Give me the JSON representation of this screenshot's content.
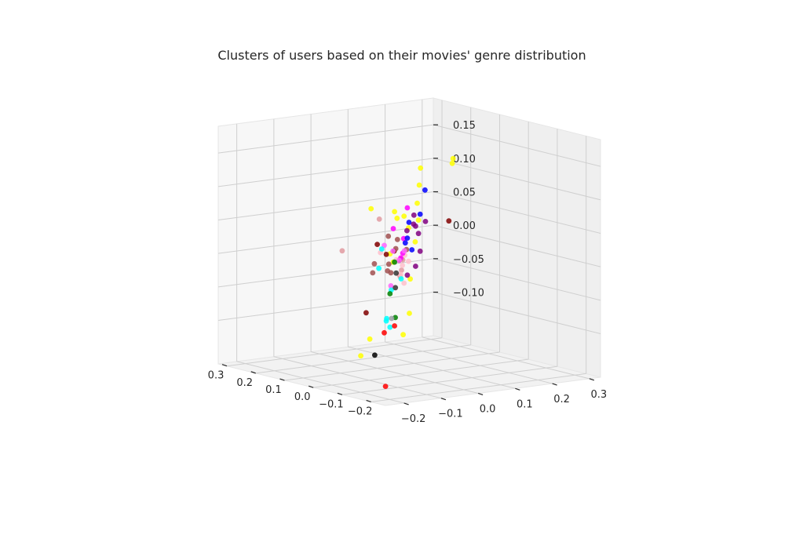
{
  "chart_data": {
    "type": "scatter",
    "dimensions": 3,
    "title": "Clusters of users based on their movies' genre distribution",
    "xlabel": "",
    "ylabel": "",
    "zlabel": "",
    "grid": true,
    "legend": "none",
    "axes": {
      "x": {
        "ticks": [
          -0.2,
          -0.1,
          0.0,
          0.1,
          0.2,
          0.3
        ],
        "tick_labels": [
          "−0.2",
          "−0.1",
          "0.0",
          "0.1",
          "0.2",
          "0.3"
        ]
      },
      "y": {
        "ticks": [
          -0.2,
          -0.1,
          0.0,
          0.1,
          0.2,
          0.3
        ],
        "tick_labels": [
          "−0.2",
          "−0.1",
          "0.0",
          "0.1",
          "0.2",
          "0.3"
        ]
      },
      "z": {
        "ticks": [
          -0.1,
          -0.05,
          0.0,
          0.05,
          0.1,
          0.15
        ],
        "tick_labels": [
          "−0.10",
          "−0.05",
          "0.00",
          "0.05",
          "0.10",
          "0.15"
        ]
      }
    },
    "series": [
      {
        "color": "#ffff00",
        "points": [
          [
            -0.05,
            0.0,
            0.15
          ],
          [
            -0.02,
            0.02,
            0.12
          ],
          [
            -0.05,
            -0.07,
            0.09
          ],
          [
            0.0,
            0.03,
            0.09
          ],
          [
            0.02,
            0.01,
            0.07
          ],
          [
            0.07,
            0.03,
            0.06
          ],
          [
            0.03,
            0.03,
            0.05
          ],
          [
            0.25,
            0.1,
            0.05
          ],
          [
            0.12,
            0.22,
            0.13
          ],
          [
            0.2,
            0.28,
            0.11
          ],
          [
            0.15,
            0.15,
            0.04
          ],
          [
            0.2,
            0.18,
            0.0
          ],
          [
            -0.02,
            -0.05,
            0.01
          ],
          [
            0.05,
            0.05,
            -0.03
          ],
          [
            -0.14,
            -0.1,
            -0.05
          ],
          [
            0.1,
            -0.02,
            -0.12
          ],
          [
            0.1,
            0.07,
            -0.12
          ],
          [
            0.08,
            -0.06,
            -0.14
          ],
          [
            0.12,
            0.05,
            0.0
          ]
        ]
      },
      {
        "color": "#800000",
        "points": [
          [
            -0.2,
            -0.04,
            0.09
          ],
          [
            0.1,
            0.0,
            0.02
          ],
          [
            0.08,
            0.03,
            0.01
          ],
          [
            0.12,
            0.04,
            0.0
          ],
          [
            0.05,
            0.02,
            0.0
          ],
          [
            0.1,
            -0.03,
            -0.08
          ]
        ]
      },
      {
        "color": "#a05050",
        "points": [
          [
            0.1,
            0.03,
            0.03
          ],
          [
            0.12,
            0.07,
            0.02
          ],
          [
            0.1,
            0.05,
            0.01
          ],
          [
            0.12,
            0.08,
            -0.01
          ],
          [
            0.09,
            0.02,
            -0.02
          ],
          [
            0.13,
            0.06,
            -0.03
          ],
          [
            0.15,
            0.07,
            -0.02
          ],
          [
            0.09,
            -0.02,
            -0.02
          ],
          [
            0.14,
            0.11,
            0.0
          ],
          [
            0.11,
            0.0,
            -0.01
          ]
        ]
      },
      {
        "color": "#e09aa0",
        "points": [
          [
            -0.1,
            -0.15,
            0.09
          ],
          [
            -0.1,
            -0.25,
            0.05
          ],
          [
            0.05,
            0.03,
            0.0
          ],
          [
            0.1,
            0.06,
            -0.03
          ],
          [
            0.02,
            0.0,
            -0.02
          ],
          [
            0.08,
            0.05,
            -0.02
          ]
        ]
      },
      {
        "color": "#ffc0cb",
        "points": [
          [
            -0.04,
            -0.1,
            0.03
          ],
          [
            0.03,
            0.02,
            0.01
          ],
          [
            0.0,
            -0.01,
            0.0
          ],
          [
            -0.02,
            -0.03,
            -0.01
          ],
          [
            0.02,
            0.01,
            -0.03
          ],
          [
            0.0,
            -0.04,
            -0.03
          ],
          [
            0.06,
            0.02,
            0.0
          ],
          [
            0.03,
            0.03,
            0.0
          ]
        ]
      },
      {
        "color": "#ff00ff",
        "points": [
          [
            -0.03,
            -0.02,
            0.09
          ],
          [
            -0.02,
            -0.05,
            0.06
          ],
          [
            0.06,
            0.04,
            0.03
          ],
          [
            0.05,
            0.03,
            0.01
          ],
          [
            0.07,
            0.04,
            0.0
          ]
        ]
      },
      {
        "color": "#ff66ff",
        "points": [
          [
            -0.04,
            -0.09,
            0.04
          ],
          [
            0.02,
            -0.02,
            0.02
          ],
          [
            -0.05,
            -0.08,
            -0.02
          ],
          [
            0.05,
            0.02,
            0.0
          ],
          [
            0.07,
            0.05,
            0.01
          ]
        ]
      },
      {
        "color": "#00ffff",
        "points": [
          [
            -0.07,
            -0.12,
            0.04
          ],
          [
            -0.06,
            -0.12,
            0.01
          ],
          [
            -0.09,
            -0.11,
            -0.02
          ],
          [
            -0.06,
            -0.06,
            -0.01
          ],
          [
            -0.1,
            -0.13,
            -0.06
          ],
          [
            -0.06,
            -0.1,
            -0.07
          ],
          [
            -0.06,
            -0.09,
            -0.08
          ]
        ]
      },
      {
        "color": "#0000ff",
        "points": [
          [
            0.05,
            0.09,
            0.1
          ],
          [
            0.08,
            0.07,
            0.05
          ],
          [
            0.06,
            0.05,
            0.03
          ],
          [
            0.08,
            0.06,
            0.02
          ],
          [
            0.08,
            0.1,
            0.06
          ],
          [
            0.07,
            0.07,
            0.01
          ]
        ]
      },
      {
        "color": "#800080",
        "points": [
          [
            0.16,
            0.15,
            0.03
          ],
          [
            0.15,
            0.15,
            0.02
          ],
          [
            0.19,
            0.2,
            0.03
          ],
          [
            0.17,
            0.17,
            -0.01
          ],
          [
            0.16,
            0.15,
            -0.03
          ],
          [
            0.15,
            0.12,
            -0.04
          ],
          [
            0.18,
            0.16,
            0.03
          ],
          [
            0.19,
            0.15,
            0.02
          ],
          [
            0.14,
            0.13,
            0.05
          ]
        ]
      },
      {
        "color": "#008000",
        "points": [
          [
            0.04,
            0.0,
            0.0
          ],
          [
            -0.06,
            -0.09,
            -0.03
          ],
          [
            -0.04,
            -0.06,
            -0.07
          ]
        ]
      },
      {
        "color": "#333333",
        "points": [
          [
            0.06,
            0.02,
            -0.02
          ],
          [
            0.05,
            0.01,
            -0.04
          ]
        ]
      },
      {
        "color": "#000000",
        "points": [
          [
            0.07,
            -0.03,
            -0.14
          ]
        ]
      },
      {
        "color": "#ff0000",
        "points": [
          [
            0.14,
            0.05,
            -0.12
          ],
          [
            0.13,
            0.07,
            -0.11
          ],
          [
            0.2,
            0.1,
            -0.21
          ]
        ]
      },
      {
        "color": "#9aa0a6",
        "points": [
          [
            0.14,
            0.07,
            -0.1
          ]
        ]
      }
    ]
  }
}
